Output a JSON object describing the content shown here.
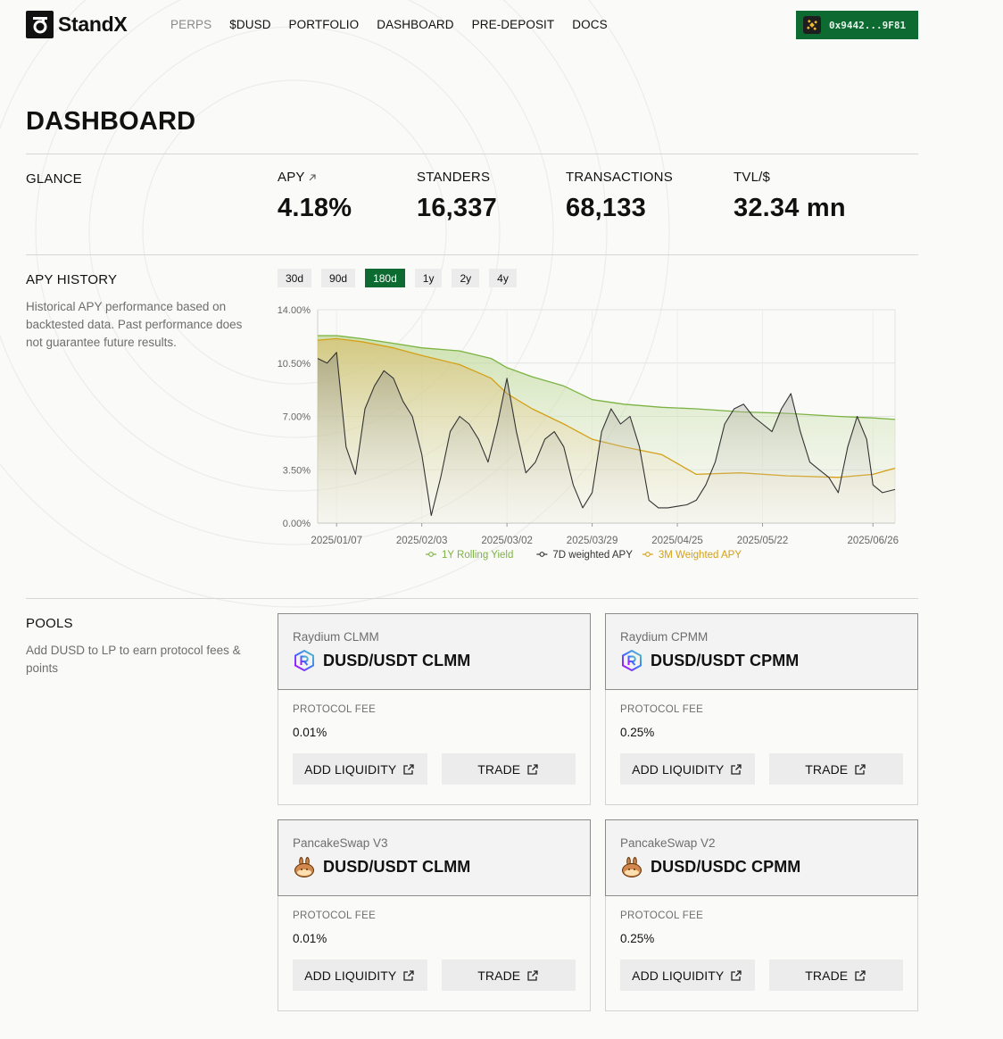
{
  "brand": {
    "name": "StandX"
  },
  "nav": {
    "items": [
      {
        "label": "PERPS",
        "muted": true
      },
      {
        "label": "$DUSD",
        "muted": false
      },
      {
        "label": "PORTFOLIO",
        "muted": false
      },
      {
        "label": "DASHBOARD",
        "muted": false
      },
      {
        "label": "PRE-DEPOSIT",
        "muted": false
      },
      {
        "label": "DOCS",
        "muted": false
      }
    ]
  },
  "wallet": {
    "address": "0x9442...9F81",
    "icon": "bnb-chain-icon"
  },
  "page": {
    "title": "DASHBOARD"
  },
  "glance": {
    "label": "GLANCE",
    "stats": [
      {
        "label": "APY",
        "value": "4.18%",
        "has_link": true
      },
      {
        "label": "STANDERS",
        "value": "16,337"
      },
      {
        "label": "TRANSACTIONS",
        "value": "68,133"
      },
      {
        "label": "TVL/$",
        "value": "32.34 mn"
      }
    ]
  },
  "apy_history": {
    "label": "APY HISTORY",
    "description": "Historical APY performance based on backtested data. Past performance does not guarantee future results.",
    "ranges": [
      "30d",
      "90d",
      "180d",
      "1y",
      "2y",
      "4y"
    ],
    "active_range": "180d"
  },
  "chart_data": {
    "type": "area",
    "title": "",
    "xlabel": "",
    "ylabel": "",
    "ylim": [
      0,
      14
    ],
    "yticks": [
      "0.00%",
      "3.50%",
      "7.00%",
      "10.50%",
      "14.00%"
    ],
    "xticks": [
      "2025/01/07",
      "2025/02/03",
      "2025/03/02",
      "2025/03/29",
      "2025/04/25",
      "2025/05/22",
      "2025/06/26"
    ],
    "grid": true,
    "legend": "bottom",
    "series": [
      {
        "name": "1Y Rolling Yield",
        "color": "#7cb342",
        "x": [
          "2025/01/01",
          "2025/01/07",
          "2025/01/15",
          "2025/01/25",
          "2025/02/03",
          "2025/02/15",
          "2025/02/25",
          "2025/03/02",
          "2025/03/10",
          "2025/03/20",
          "2025/03/29",
          "2025/04/08",
          "2025/04/20",
          "2025/05/01",
          "2025/05/15",
          "2025/05/30",
          "2025/06/15",
          "2025/06/26",
          "2025/07/03"
        ],
        "values": [
          12.3,
          12.3,
          12.1,
          11.8,
          11.5,
          11.3,
          10.8,
          10.2,
          9.6,
          9.0,
          8.1,
          7.8,
          7.6,
          7.5,
          7.3,
          7.2,
          7.0,
          6.9,
          6.8
        ]
      },
      {
        "name": "7D weighted APY",
        "color": "#333333",
        "x": [
          "2025/01/01",
          "2025/01/04",
          "2025/01/07",
          "2025/01/10",
          "2025/01/13",
          "2025/01/16",
          "2025/01/19",
          "2025/01/22",
          "2025/01/25",
          "2025/01/28",
          "2025/01/31",
          "2025/02/03",
          "2025/02/06",
          "2025/02/09",
          "2025/02/12",
          "2025/02/15",
          "2025/02/18",
          "2025/02/21",
          "2025/02/24",
          "2025/02/27",
          "2025/03/02",
          "2025/03/05",
          "2025/03/08",
          "2025/03/11",
          "2025/03/14",
          "2025/03/17",
          "2025/03/20",
          "2025/03/23",
          "2025/03/26",
          "2025/03/29",
          "2025/04/01",
          "2025/04/04",
          "2025/04/07",
          "2025/04/10",
          "2025/04/13",
          "2025/04/16",
          "2025/04/19",
          "2025/04/22",
          "2025/04/25",
          "2025/04/28",
          "2025/05/01",
          "2025/05/04",
          "2025/05/07",
          "2025/05/10",
          "2025/05/13",
          "2025/05/16",
          "2025/05/19",
          "2025/05/22",
          "2025/05/25",
          "2025/05/28",
          "2025/05/31",
          "2025/06/03",
          "2025/06/06",
          "2025/06/09",
          "2025/06/12",
          "2025/06/15",
          "2025/06/18",
          "2025/06/21",
          "2025/06/24",
          "2025/06/26",
          "2025/06/29",
          "2025/07/03"
        ],
        "values": [
          10.8,
          10.5,
          11.2,
          5.0,
          3.2,
          7.5,
          9.0,
          10.0,
          9.5,
          8.0,
          7.0,
          4.5,
          0.5,
          3.0,
          6.0,
          7.0,
          6.5,
          5.5,
          4.0,
          6.5,
          9.5,
          6.0,
          3.3,
          4.0,
          5.5,
          6.0,
          5.0,
          2.5,
          1.0,
          2.0,
          6.0,
          7.5,
          6.5,
          7.0,
          5.0,
          1.5,
          1.0,
          1.0,
          1.1,
          1.2,
          1.5,
          2.5,
          4.0,
          6.5,
          7.5,
          7.8,
          7.0,
          6.5,
          6.0,
          7.5,
          8.5,
          6.0,
          4.0,
          3.5,
          3.0,
          2.0,
          5.0,
          7.0,
          5.5,
          2.5,
          2.0,
          2.2
        ]
      },
      {
        "name": "3M Weighted APY",
        "color": "#d4a017",
        "x": [
          "2025/01/01",
          "2025/01/07",
          "2025/01/15",
          "2025/01/25",
          "2025/02/03",
          "2025/02/15",
          "2025/02/25",
          "2025/03/02",
          "2025/03/10",
          "2025/03/20",
          "2025/03/29",
          "2025/04/08",
          "2025/04/20",
          "2025/05/01",
          "2025/05/15",
          "2025/05/30",
          "2025/06/15",
          "2025/06/26",
          "2025/07/03"
        ],
        "values": [
          12.0,
          12.1,
          11.9,
          11.5,
          11.0,
          10.4,
          9.5,
          8.5,
          7.5,
          6.5,
          5.5,
          5.0,
          4.5,
          3.2,
          3.3,
          3.1,
          3.0,
          3.2,
          3.6
        ]
      }
    ]
  },
  "pools": {
    "label": "POOLS",
    "description": "Add DUSD to LP to earn protocol fees & points",
    "items": [
      {
        "venue": "Raydium CLMM",
        "name": "DUSD/USDT CLMM",
        "icon": "raydium-icon",
        "fee_label": "PROTOCOL FEE",
        "fee": "0.01%",
        "add_label": "ADD LIQUIDITY",
        "trade_label": "TRADE"
      },
      {
        "venue": "Raydium CPMM",
        "name": "DUSD/USDT CPMM",
        "icon": "raydium-icon",
        "fee_label": "PROTOCOL FEE",
        "fee": "0.25%",
        "add_label": "ADD LIQUIDITY",
        "trade_label": "TRADE"
      },
      {
        "venue": "PancakeSwap V3",
        "name": "DUSD/USDT CLMM",
        "icon": "pancakeswap-icon",
        "fee_label": "PROTOCOL FEE",
        "fee": "0.01%",
        "add_label": "ADD LIQUIDITY",
        "trade_label": "TRADE"
      },
      {
        "venue": "PancakeSwap V2",
        "name": "DUSD/USDC CPMM",
        "icon": "pancakeswap-icon",
        "fee_label": "PROTOCOL FEE",
        "fee": "0.25%",
        "add_label": "ADD LIQUIDITY",
        "trade_label": "TRADE"
      }
    ]
  },
  "colors": {
    "accent": "#0d6b32",
    "text": "#111111",
    "muted": "#6e6e6e"
  }
}
